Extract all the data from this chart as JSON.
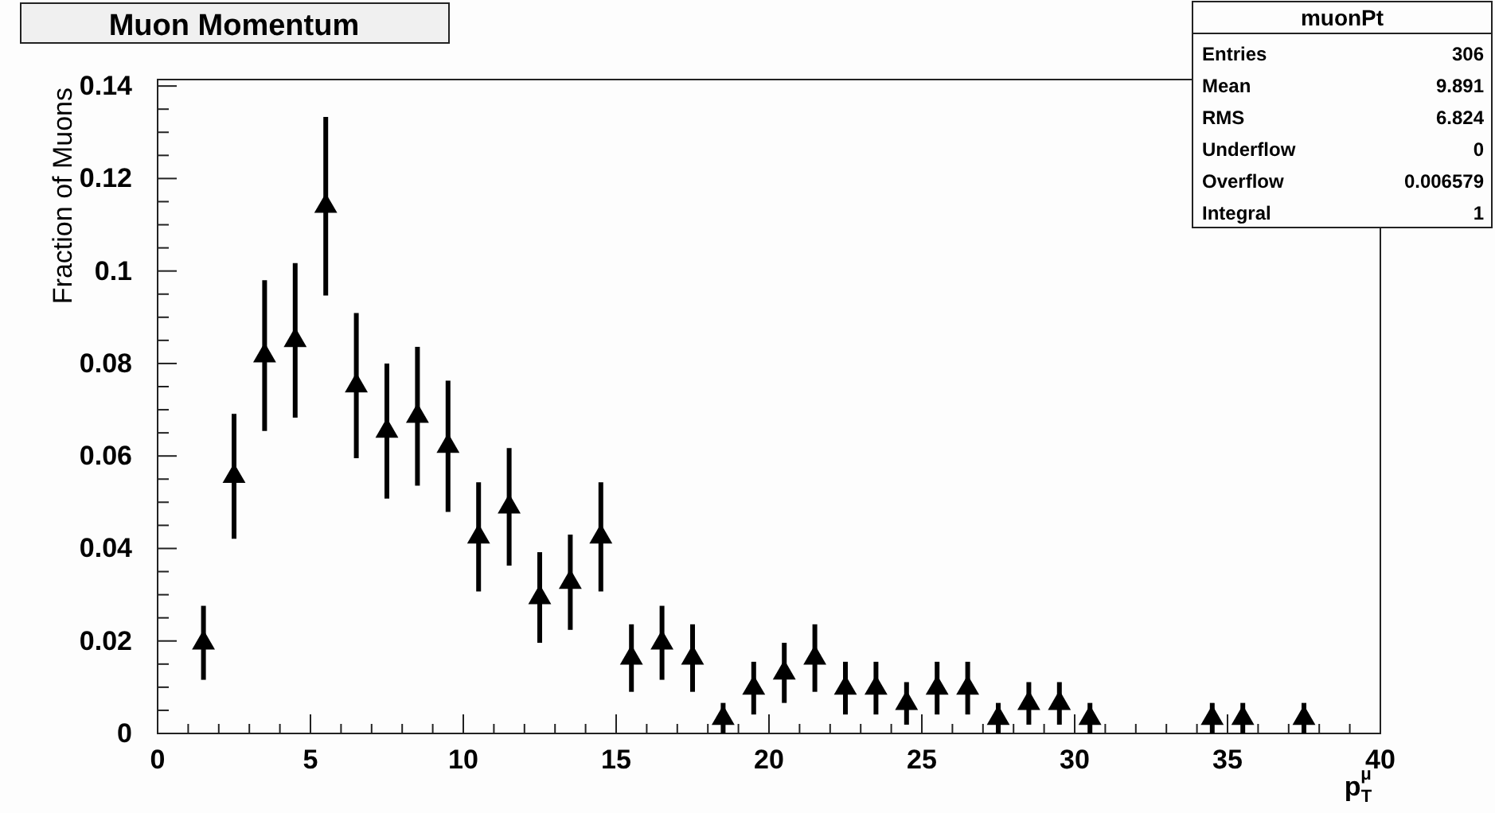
{
  "chart_data": {
    "type": "scatter",
    "title": "Muon Momentum",
    "ylabel": "Fraction of Muons",
    "xlabel": "p$_{T}$$^{μ}$",
    "x": [
      1.5,
      2.5,
      3.5,
      4.5,
      5.5,
      6.5,
      7.5,
      8.5,
      9.5,
      10.5,
      11.5,
      12.5,
      13.5,
      14.5,
      15.5,
      16.5,
      17.5,
      18.5,
      19.5,
      20.5,
      21.5,
      22.5,
      23.5,
      24.5,
      25.5,
      26.5,
      27.5,
      28.5,
      29.5,
      30.5,
      34.5,
      35.5,
      37.5
    ],
    "values": [
      0.0196,
      0.0556,
      0.0817,
      0.085,
      0.114,
      0.0752,
      0.0654,
      0.0686,
      0.0621,
      0.0425,
      0.049,
      0.0294,
      0.0327,
      0.0425,
      0.0163,
      0.0196,
      0.0163,
      0.0033,
      0.0098,
      0.0131,
      0.0163,
      0.0098,
      0.0098,
      0.0065,
      0.0098,
      0.0098,
      0.0033,
      0.0065,
      0.0065,
      0.0033,
      0.0033,
      0.0033,
      0.0033
    ],
    "errors": [
      0.008,
      0.0135,
      0.0163,
      0.0167,
      0.0193,
      0.0157,
      0.0146,
      0.015,
      0.0142,
      0.0118,
      0.0127,
      0.0098,
      0.0103,
      0.0118,
      0.0073,
      0.008,
      0.0073,
      0.0033,
      0.0057,
      0.0065,
      0.0073,
      0.0057,
      0.0057,
      0.0046,
      0.0057,
      0.0057,
      0.0033,
      0.0046,
      0.0046,
      0.0033,
      0.0033,
      0.0033,
      0.0033
    ],
    "color": "#000000",
    "marker": "triangle",
    "legend": false,
    "grid": false,
    "xlim": [
      0,
      40
    ],
    "xticks": [
      0,
      {
        "value": 1,
        "label": null
      },
      {
        "value": 2,
        "label": null
      },
      {
        "value": 3,
        "label": null
      },
      {
        "value": 4,
        "label": null
      },
      5,
      {
        "value": 6,
        "label": null
      },
      {
        "value": 7,
        "label": null
      },
      {
        "value": 8,
        "label": null
      },
      {
        "value": 9,
        "label": null
      },
      10,
      {
        "value": 11,
        "label": null
      },
      {
        "value": 12,
        "label": null
      },
      {
        "value": 13,
        "label": null
      },
      {
        "value": 14,
        "label": null
      },
      15,
      {
        "value": 16,
        "label": null
      },
      {
        "value": 17,
        "label": null
      },
      {
        "value": 18,
        "label": null
      },
      {
        "value": 19,
        "label": null
      },
      20,
      {
        "value": 21,
        "label": null
      },
      {
        "value": 22,
        "label": null
      },
      {
        "value": 23,
        "label": null
      },
      {
        "value": 24,
        "label": null
      },
      25,
      {
        "value": 26,
        "label": null
      },
      {
        "value": 27,
        "label": null
      },
      {
        "value": 28,
        "label": null
      },
      {
        "value": 29,
        "label": null
      },
      30,
      {
        "value": 31,
        "label": null
      },
      {
        "value": 32,
        "label": null
      },
      {
        "value": 33,
        "label": null
      },
      {
        "value": 34,
        "label": null
      },
      35,
      {
        "value": 36,
        "label": null
      },
      {
        "value": 37,
        "label": null
      },
      {
        "value": 38,
        "label": null
      },
      {
        "value": 39,
        "label": null
      },
      40
    ],
    "ylim": [
      0,
      0.1414
    ],
    "yticks": [
      0,
      {
        "value": 0.005,
        "label": null
      },
      {
        "value": 0.01,
        "label": null
      },
      {
        "value": 0.015,
        "label": null
      },
      0.02,
      {
        "value": 0.025,
        "label": null
      },
      {
        "value": 0.03,
        "label": null
      },
      {
        "value": 0.035,
        "label": null
      },
      0.04,
      {
        "value": 0.045,
        "label": null
      },
      {
        "value": 0.05,
        "label": null
      },
      {
        "value": 0.055,
        "label": null
      },
      0.06,
      {
        "value": 0.065,
        "label": null
      },
      {
        "value": 0.07,
        "label": null
      },
      {
        "value": 0.075,
        "label": null
      },
      0.08,
      {
        "value": 0.085,
        "label": null
      },
      {
        "value": 0.09,
        "label": null
      },
      {
        "value": 0.095,
        "label": null
      },
      0.1,
      {
        "value": 0.105,
        "label": null
      },
      {
        "value": 0.11,
        "label": null
      },
      {
        "value": 0.115,
        "label": null
      },
      0.12,
      {
        "value": 0.125,
        "label": null
      },
      {
        "value": 0.13,
        "label": null
      },
      {
        "value": 0.135,
        "label": null
      },
      0.14
    ],
    "annotations": [
      "muonPt",
      "Entries",
      "306",
      "Mean",
      "9.891",
      "RMS",
      "6.824",
      "Underflow",
      "0",
      "Overflow",
      "0.006579",
      "Integral",
      "1"
    ]
  }
}
